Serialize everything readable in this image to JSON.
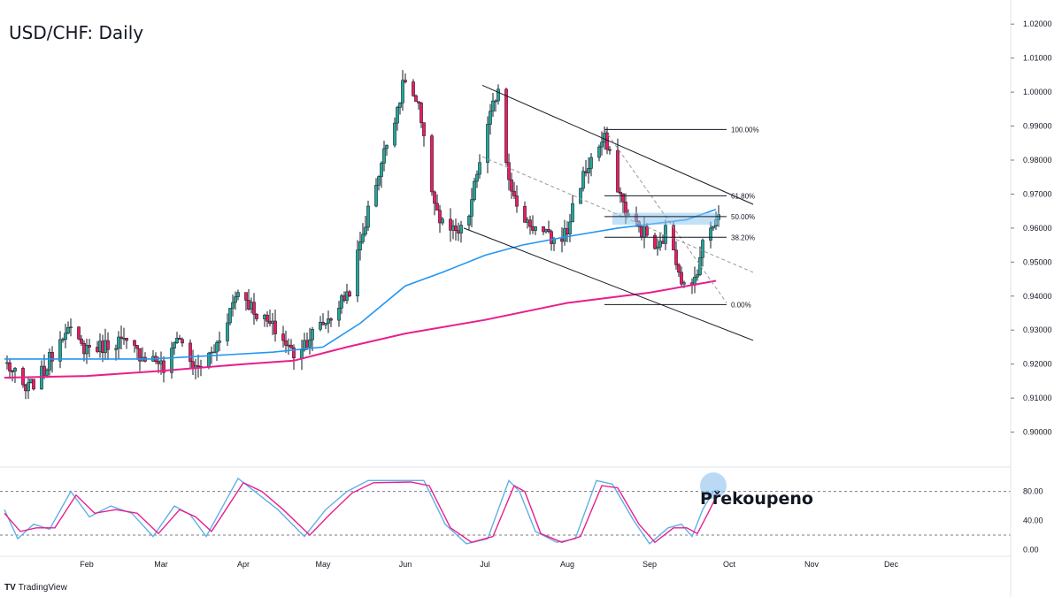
{
  "title": "USD/CHF: Daily",
  "annotation": "Překoupeno",
  "logo": {
    "icon": "tradingview-logo-icon",
    "text": "TradingView"
  },
  "colors": {
    "up": "#26a69a",
    "down": "#e91e63",
    "ma_fast": "#2196f3",
    "ma_slow": "#e91e8c",
    "stoch_k": "#5fb0e8",
    "stoch_d": "#e91e8c",
    "zone": "#90c8f0",
    "line": "#131722"
  },
  "chart_data": [
    {
      "type": "candlestick",
      "title": "USD/CHF: Daily",
      "ylim": [
        0.89,
        1.025
      ],
      "y_ticks": [
        "1.02000",
        "1.01000",
        "1.00000",
        "0.99000",
        "0.98000",
        "0.97000",
        "0.96000",
        "0.95000",
        "0.94000",
        "0.93000",
        "0.92000",
        "0.91000",
        "0.90000"
      ],
      "x_ticks": [
        "Feb",
        "Mar",
        "Apr",
        "May",
        "Jun",
        "Jul",
        "Aug",
        "Sep",
        "Oct",
        "Nov",
        "Dec"
      ],
      "waypoints": [
        [
          "Jan 2",
          0.92
        ],
        [
          "Jan 9",
          0.912
        ],
        [
          "Jan 16",
          0.918
        ],
        [
          "Jan 24",
          0.931
        ],
        [
          "Jan 30",
          0.925
        ],
        [
          "Feb 6",
          0.925
        ],
        [
          "Feb 13",
          0.927
        ],
        [
          "Feb 21",
          0.923
        ],
        [
          "Feb 28",
          0.921
        ],
        [
          "Mar 3",
          0.917
        ],
        [
          "Mar 7",
          0.929
        ],
        [
          "Mar 14",
          0.918
        ],
        [
          "Mar 21",
          0.924
        ],
        [
          "Mar 30",
          0.942
        ],
        [
          "Apr 6",
          0.935
        ],
        [
          "Apr 13",
          0.93
        ],
        [
          "Apr 20",
          0.923
        ],
        [
          "Apr 27",
          0.929
        ],
        [
          "May 4",
          0.934
        ],
        [
          "May 11",
          0.942
        ],
        [
          "May 18",
          0.965
        ],
        [
          "May 25",
          0.985
        ],
        [
          "Jun 1",
          1.004
        ],
        [
          "Jun 6",
          0.995
        ],
        [
          "Jun 10",
          0.975
        ],
        [
          "Jun 14",
          0.962
        ],
        [
          "Jun 20",
          0.958
        ],
        [
          "Jun 24",
          0.96
        ],
        [
          "Jun 29",
          0.98
        ],
        [
          "Jul 6",
          1.002
        ],
        [
          "Jul 9",
          0.98
        ],
        [
          "Jul 13",
          0.965
        ],
        [
          "Jul 20",
          0.96
        ],
        [
          "Jul 27",
          0.956
        ],
        [
          "Aug 1",
          0.959
        ],
        [
          "Aug 4",
          0.97
        ],
        [
          "Aug 11",
          0.982
        ],
        [
          "Aug 15",
          0.986
        ],
        [
          "Aug 18",
          0.978
        ],
        [
          "Aug 22",
          0.967
        ],
        [
          "Aug 25",
          0.962
        ],
        [
          "Aug 31",
          0.958
        ],
        [
          "Sep 4",
          0.953
        ],
        [
          "Sep 8",
          0.961
        ],
        [
          "Sep 11",
          0.951
        ],
        [
          "Sep 15",
          0.94
        ],
        [
          "Sep 17",
          0.942
        ],
        [
          "Sep 21",
          0.955
        ],
        [
          "Sep 25",
          0.962
        ],
        [
          "Sep 27",
          0.9655
        ]
      ],
      "ma_fast": [
        [
          "Jan 1",
          0.9215
        ],
        [
          "Feb 25",
          0.9215
        ],
        [
          "Mar 20",
          0.9225
        ],
        [
          "Apr 12",
          0.9235
        ],
        [
          "May 1",
          0.925
        ],
        [
          "May 15",
          0.932
        ],
        [
          "Jun 1",
          0.943
        ],
        [
          "Jun 15",
          0.947
        ],
        [
          "Jul 1",
          0.952
        ],
        [
          "Jul 15",
          0.955
        ],
        [
          "Aug 1",
          0.9575
        ],
        [
          "Aug 20",
          0.96
        ],
        [
          "Sep 5",
          0.9615
        ],
        [
          "Sep 15",
          0.9625
        ],
        [
          "Sep 26",
          0.9655
        ]
      ],
      "ma_slow": [
        [
          "Jan 1",
          0.916
        ],
        [
          "Feb 1",
          0.9165
        ],
        [
          "Mar 1",
          0.918
        ],
        [
          "Apr 1",
          0.92
        ],
        [
          "Apr 20",
          0.921
        ],
        [
          "May 10",
          0.925
        ],
        [
          "Jun 1",
          0.929
        ],
        [
          "Jul 1",
          0.933
        ],
        [
          "Aug 1",
          0.938
        ],
        [
          "Sep 1",
          0.941
        ],
        [
          "Sep 26",
          0.9445
        ]
      ],
      "channel": {
        "upper": [
          [
            "Jun 30",
            1.002
          ],
          [
            "Oct 10",
            0.967
          ]
        ],
        "lower": [
          [
            "Jun 23",
            0.96
          ],
          [
            "Oct 10",
            0.927
          ]
        ],
        "mid": [
          [
            "Jun 30",
            0.981
          ],
          [
            "Oct 10",
            0.947
          ]
        ]
      },
      "fib_diagonal": [
        [
          "Aug 15",
          0.989
        ],
        [
          "Sep 30",
          0.938
        ]
      ],
      "fib_levels": [
        {
          "label": "100.00%",
          "value": 0.989
        },
        {
          "label": "61.80%",
          "value": 0.9695
        },
        {
          "label": "50.00%",
          "value": 0.9634
        },
        {
          "label": "38.20%",
          "value": 0.9573
        },
        {
          "label": "0.00%",
          "value": 0.9375
        }
      ],
      "zone": {
        "from": "Aug 18",
        "to": "Sep 27",
        "low": 0.961,
        "high": 0.9645
      }
    },
    {
      "type": "line",
      "title": "Stochastic",
      "ylim": [
        -8,
        110
      ],
      "y_ticks": [
        "80.00",
        "40.00",
        "0.00"
      ],
      "levels": [
        80,
        20
      ],
      "series": [
        {
          "name": "",
          "values": [
            [
              "Jan 1",
              55
            ],
            [
              "Jan 6",
              15
            ],
            [
              "Jan 12",
              35
            ],
            [
              "Jan 18",
              28
            ],
            [
              "Jan 26",
              80
            ],
            [
              "Feb 2",
              45
            ],
            [
              "Feb 10",
              60
            ],
            [
              "Feb 18",
              50
            ],
            [
              "Feb 26",
              18
            ],
            [
              "Mar 6",
              60
            ],
            [
              "Mar 12",
              48
            ],
            [
              "Mar 18",
              18
            ],
            [
              "Mar 30",
              98
            ],
            [
              "Apr 6",
              78
            ],
            [
              "Apr 14",
              55
            ],
            [
              "Apr 24",
              18
            ],
            [
              "May 2",
              55
            ],
            [
              "May 10",
              80
            ],
            [
              "May 18",
              95
            ],
            [
              "Jun 1",
              95
            ],
            [
              "Jun 8",
              95
            ],
            [
              "Jun 16",
              35
            ],
            [
              "Jun 24",
              8
            ],
            [
              "Jul 2",
              15
            ],
            [
              "Jul 10",
              95
            ],
            [
              "Jul 14",
              80
            ],
            [
              "Jul 20",
              25
            ],
            [
              "Jul 28",
              10
            ],
            [
              "Aug 4",
              15
            ],
            [
              "Aug 12",
              95
            ],
            [
              "Aug 18",
              90
            ],
            [
              "Aug 26",
              40
            ],
            [
              "Sep 1",
              8
            ],
            [
              "Sep 8",
              30
            ],
            [
              "Sep 13",
              35
            ],
            [
              "Sep 17",
              18
            ],
            [
              "Sep 21",
              55
            ],
            [
              "Sep 25",
              80
            ],
            [
              "Sep 27",
              82
            ]
          ]
        },
        {
          "name": "",
          "values": [
            [
              "Jan 1",
              50
            ],
            [
              "Jan 7",
              25
            ],
            [
              "Jan 13",
              30
            ],
            [
              "Jan 20",
              30
            ],
            [
              "Jan 28",
              75
            ],
            [
              "Feb 4",
              50
            ],
            [
              "Feb 12",
              55
            ],
            [
              "Feb 20",
              50
            ],
            [
              "Feb 28",
              22
            ],
            [
              "Mar 8",
              55
            ],
            [
              "Mar 14",
              45
            ],
            [
              "Mar 20",
              25
            ],
            [
              "Apr 1",
              92
            ],
            [
              "Apr 8",
              80
            ],
            [
              "Apr 16",
              55
            ],
            [
              "Apr 26",
              20
            ],
            [
              "May 4",
              50
            ],
            [
              "May 12",
              78
            ],
            [
              "May 20",
              92
            ],
            [
              "Jun 3",
              93
            ],
            [
              "Jun 10",
              88
            ],
            [
              "Jun 18",
              30
            ],
            [
              "Jun 26",
              10
            ],
            [
              "Jul 4",
              18
            ],
            [
              "Jul 12",
              88
            ],
            [
              "Jul 16",
              80
            ],
            [
              "Jul 22",
              22
            ],
            [
              "Jul 30",
              10
            ],
            [
              "Aug 6",
              18
            ],
            [
              "Aug 14",
              88
            ],
            [
              "Aug 20",
              85
            ],
            [
              "Aug 28",
              35
            ],
            [
              "Sep 3",
              10
            ],
            [
              "Sep 10",
              30
            ],
            [
              "Sep 15",
              30
            ],
            [
              "Sep 19",
              22
            ],
            [
              "Sep 23",
              50
            ],
            [
              "Sep 26",
              72
            ],
            [
              "Sep 27",
              80
            ]
          ]
        }
      ]
    }
  ]
}
